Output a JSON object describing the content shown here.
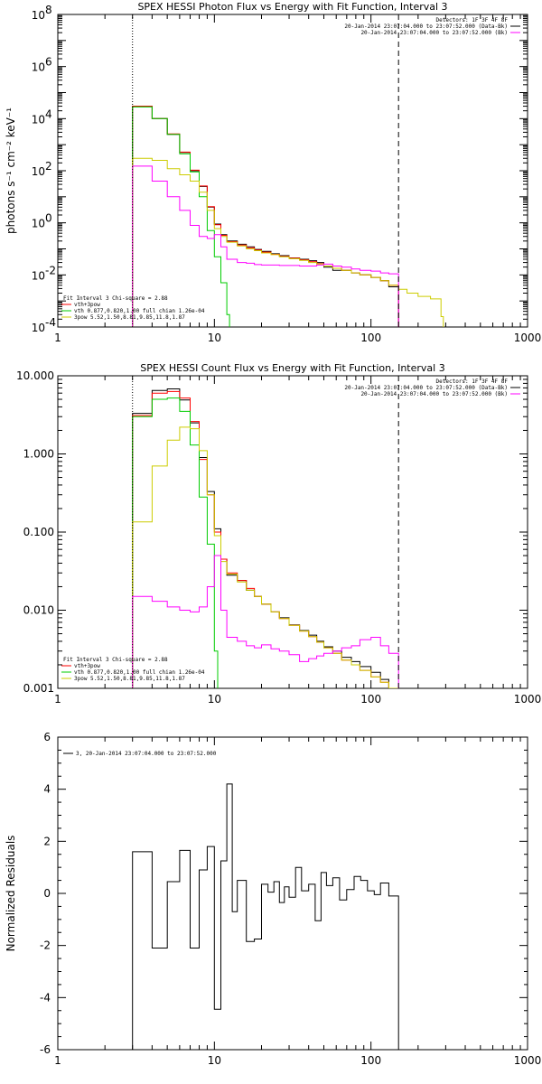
{
  "chart_data": [
    {
      "type": "line",
      "title": "SPEX HESSI Photon Flux vs Energy with Fit Function, Interval 3",
      "ylabel": "photons s⁻¹ cm⁻² keV⁻¹",
      "xlabel": "",
      "xscale": "log",
      "yscale": "log",
      "xlim": [
        1,
        1000
      ],
      "ylim": [
        0.0001,
        100000000
      ],
      "x_ticks": [
        "1",
        "10",
        "100",
        "1000"
      ],
      "y_ticks": [
        {
          "base": "10",
          "exp": "-4"
        },
        {
          "base": "10",
          "exp": "-2"
        },
        {
          "base": "10",
          "exp": "0"
        },
        {
          "base": "10",
          "exp": "2"
        },
        {
          "base": "10",
          "exp": "4"
        },
        {
          "base": "10",
          "exp": "6"
        },
        {
          "base": "10",
          "exp": "8"
        }
      ],
      "legend_top": [
        "Detectors: 1F 3F 4F 8F",
        "20-Jan-2014 23:07:04.000 to 23:07:52.000 (Data-Bk)",
        "20-Jan-2014 23:07:04.000 to 23:07:52.000 (Bk)"
      ],
      "legend_top_colors": [
        "",
        "#000000",
        "#ff00ff"
      ],
      "legend_bottom": [
        "Fit Interval 3   Chi-square = 2.88",
        "vth+3pow",
        "vth 0.877,0.820,1.00  full chian 1.26e-04",
        "3pow 5.52,1.50,8.81,9.85,11.8,1.87"
      ],
      "legend_bottom_colors": [
        "",
        "#ff0000",
        "#00cc00",
        "#cccc00"
      ],
      "vlines": [
        {
          "x": 3.0,
          "style": "dotted"
        },
        {
          "x": 150,
          "style": "dashed"
        }
      ],
      "series": [
        {
          "name": "(Data-Bk)",
          "color": "#000000",
          "edges": [
            3.0,
            4.0,
            5.0,
            6.0,
            7.0,
            8.0,
            9.0,
            10.0,
            11.0,
            12.0,
            14.0,
            16.0,
            18.0,
            20.0,
            23.0,
            26.0,
            30.0,
            35.0,
            40.0,
            45.0,
            50.0,
            57.0,
            65.0,
            75.0,
            85.0,
            100.0,
            115.0,
            130.0,
            150.0
          ],
          "values": [
            30000,
            10000,
            2500,
            500,
            100,
            25,
            4,
            0.9,
            0.35,
            0.2,
            0.15,
            0.12,
            0.095,
            0.08,
            0.065,
            0.055,
            0.045,
            0.04,
            0.035,
            0.03,
            0.02,
            0.015,
            0.015,
            0.012,
            0.01,
            0.008,
            0.006,
            0.0035
          ]
        },
        {
          "name": "vth+3pow",
          "color": "#ff0000",
          "edges": [
            3.0,
            4.0,
            5.0,
            6.0,
            7.0,
            8.0,
            9.0,
            10.0,
            11.0,
            12.0,
            14.0,
            16.0,
            18.0,
            20.0,
            23.0,
            26.0,
            30.0,
            35.0,
            40.0,
            45.0,
            50.0,
            57.0,
            65.0,
            75.0,
            85.0,
            100.0,
            115.0,
            130.0,
            150.0
          ],
          "values": [
            30000,
            10000,
            2600,
            520,
            105,
            26,
            4.2,
            0.85,
            0.33,
            0.19,
            0.14,
            0.11,
            0.09,
            0.075,
            0.062,
            0.052,
            0.044,
            0.038,
            0.032,
            0.027,
            0.022,
            0.018,
            0.015,
            0.012,
            0.01,
            0.008,
            0.006,
            0.004
          ]
        },
        {
          "name": "vth",
          "color": "#00cc00",
          "edges": [
            3.0,
            4.0,
            5.0,
            6.0,
            7.0,
            8.0,
            9.0,
            10.0,
            11.0,
            12.0,
            12.5
          ],
          "values": [
            28000,
            10000,
            2500,
            450,
            90,
            10,
            0.5,
            0.05,
            0.005,
            0.0003
          ]
        },
        {
          "name": "3pow",
          "color": "#cccc00",
          "edges": [
            3.0,
            4.0,
            5.0,
            6.0,
            7.0,
            8.0,
            9.0,
            10.0,
            11.0,
            12.0,
            14.0,
            16.0,
            18.0,
            20.0,
            23.0,
            26.0,
            30.0,
            35.0,
            40.0,
            45.0,
            50.0,
            57.0,
            65.0,
            75.0,
            85.0,
            100.0,
            115.0,
            130.0,
            150.0,
            170.0,
            200.0,
            240.0,
            280.0,
            290.0
          ],
          "values": [
            300,
            250,
            120,
            70,
            40,
            15,
            3,
            0.6,
            0.3,
            0.18,
            0.13,
            0.1,
            0.085,
            0.07,
            0.06,
            0.05,
            0.042,
            0.036,
            0.03,
            0.026,
            0.022,
            0.018,
            0.015,
            0.012,
            0.01,
            0.008,
            0.006,
            0.004,
            0.0028,
            0.002,
            0.0015,
            0.0012,
            0.00025
          ]
        },
        {
          "name": "(Bk)",
          "color": "#ff00ff",
          "edges": [
            3.0,
            4.0,
            5.0,
            6.0,
            7.0,
            8.0,
            9.0,
            10.0,
            11.0,
            12.0,
            14.0,
            16.0,
            18.0,
            20.0,
            23.0,
            26.0,
            30.0,
            35.0,
            40.0,
            45.0,
            50.0,
            57.0,
            65.0,
            75.0,
            85.0,
            100.0,
            115.0,
            130.0,
            150.0
          ],
          "values": [
            150,
            40,
            10,
            3,
            0.8,
            0.3,
            0.25,
            0.35,
            0.12,
            0.04,
            0.03,
            0.028,
            0.025,
            0.024,
            0.024,
            0.023,
            0.023,
            0.022,
            0.022,
            0.024,
            0.026,
            0.022,
            0.02,
            0.017,
            0.015,
            0.014,
            0.012,
            0.011
          ]
        }
      ]
    },
    {
      "type": "line",
      "title": "SPEX HESSI Count Flux vs Energy with Fit Function, Interval 3",
      "ylabel": "",
      "xlabel": "",
      "xscale": "log",
      "yscale": "log",
      "xlim": [
        1,
        1000
      ],
      "ylim": [
        0.001,
        10
      ],
      "x_ticks": [
        "1",
        "10",
        "100",
        "1000"
      ],
      "y_ticks": [
        "0.001",
        "0.010",
        "0.100",
        "1.000",
        "10.000"
      ],
      "legend_top": [
        "Detectors: 1F 3F 4F 8F",
        "20-Jan-2014 23:07:04.000 to 23:07:52.000 (Data-Bk)",
        "20-Jan-2014 23:07:04.000 to 23:07:52.000 (Bk)"
      ],
      "legend_top_colors": [
        "",
        "#000000",
        "#ff00ff"
      ],
      "legend_bottom": [
        "Fit Interval 3   Chi-square = 2.88",
        "vth+3pow",
        "vth 0.877,0.820,1.00  full chian 1.26e-04",
        "3pow 5.52,1.50,8.81,9.85,11.8,1.87"
      ],
      "legend_bottom_colors": [
        "",
        "#ff0000",
        "#00cc00",
        "#cccc00"
      ],
      "vlines": [
        {
          "x": 3.0,
          "style": "dotted"
        },
        {
          "x": 150,
          "style": "dashed"
        }
      ],
      "series": [
        {
          "name": "(Data-Bk)",
          "color": "#000000",
          "edges": [
            3.0,
            4.0,
            5.0,
            6.0,
            7.0,
            8.0,
            9.0,
            10.0,
            11.0,
            12.0,
            14.0,
            16.0,
            18.0,
            20.0,
            23.0,
            26.0,
            30.0,
            35.0,
            40.0,
            45.0,
            50.0,
            57.0,
            65.0,
            75.0,
            85.0,
            100.0,
            115.0,
            130.0,
            150.0
          ],
          "values": [
            3.3,
            6.5,
            6.8,
            4.9,
            2.5,
            0.9,
            0.33,
            0.11,
            0.045,
            0.028,
            0.024,
            0.018,
            0.015,
            0.012,
            0.0095,
            0.008,
            0.0065,
            0.0055,
            0.0048,
            0.004,
            0.0034,
            0.003,
            0.0025,
            0.0022,
            0.0019,
            0.0016,
            0.0013,
            0.001
          ]
        },
        {
          "name": "vth+3pow",
          "color": "#ff0000",
          "edges": [
            3.0,
            4.0,
            5.0,
            6.0,
            7.0,
            8.0,
            9.0,
            10.0,
            11.0,
            12.0,
            14.0,
            16.0,
            18.0,
            20.0,
            23.0,
            26.0,
            30.0,
            35.0,
            40.0,
            45.0,
            50.0,
            57.0,
            65.0,
            75.0,
            85.0,
            100.0,
            115.0,
            130.0,
            150.0
          ],
          "values": [
            3.1,
            6.0,
            6.3,
            5.2,
            2.6,
            0.85,
            0.3,
            0.1,
            0.045,
            0.03,
            0.024,
            0.019,
            0.015,
            0.012,
            0.0095,
            0.0078,
            0.0064,
            0.0054,
            0.0046,
            0.0039,
            0.0033,
            0.0028,
            0.0023,
            0.002,
            0.0017,
            0.0014,
            0.0012,
            0.001
          ]
        },
        {
          "name": "vth",
          "color": "#00cc00",
          "edges": [
            3.0,
            4.0,
            5.0,
            6.0,
            7.0,
            8.0,
            9.0,
            10.0,
            10.5
          ],
          "values": [
            3.0,
            5.0,
            5.2,
            3.5,
            1.3,
            0.28,
            0.07,
            0.003
          ]
        },
        {
          "name": "3pow",
          "color": "#cccc00",
          "edges": [
            3.0,
            4.0,
            5.0,
            6.0,
            7.0,
            8.0,
            9.0,
            10.0,
            11.0,
            12.0,
            14.0,
            16.0,
            18.0,
            20.0,
            23.0,
            26.0,
            30.0,
            35.0,
            40.0,
            45.0,
            50.0,
            57.0,
            65.0,
            75.0,
            85.0,
            100.0,
            115.0,
            130.0,
            150.0
          ],
          "values": [
            0.135,
            0.7,
            1.5,
            2.2,
            2.1,
            1.1,
            0.3,
            0.09,
            0.042,
            0.029,
            0.023,
            0.018,
            0.015,
            0.012,
            0.0095,
            0.0078,
            0.0064,
            0.0054,
            0.0046,
            0.0039,
            0.0033,
            0.0028,
            0.0023,
            0.002,
            0.0017,
            0.0014,
            0.0012,
            0.001
          ]
        },
        {
          "name": "(Bk)",
          "color": "#ff00ff",
          "edges": [
            3.0,
            4.0,
            5.0,
            6.0,
            7.0,
            8.0,
            9.0,
            10.0,
            11.0,
            12.0,
            14.0,
            16.0,
            18.0,
            20.0,
            23.0,
            26.0,
            30.0,
            35.0,
            40.0,
            45.0,
            50.0,
            57.0,
            65.0,
            75.0,
            85.0,
            100.0,
            115.0,
            130.0,
            150.0
          ],
          "values": [
            0.015,
            0.013,
            0.011,
            0.01,
            0.0095,
            0.011,
            0.02,
            0.05,
            0.01,
            0.0045,
            0.004,
            0.0035,
            0.0033,
            0.0036,
            0.0032,
            0.003,
            0.0027,
            0.0022,
            0.0024,
            0.0026,
            0.0028,
            0.003,
            0.0033,
            0.0035,
            0.0042,
            0.0045,
            0.0035,
            0.0028
          ]
        }
      ]
    },
    {
      "type": "line",
      "title": "",
      "ylabel": "Normalized Residuals",
      "xlabel": "",
      "xscale": "log",
      "yscale": "linear",
      "xlim": [
        1,
        1000
      ],
      "ylim": [
        -6,
        6
      ],
      "x_ticks": [
        "1",
        "10",
        "100",
        "1000"
      ],
      "y_ticks": [
        "-6",
        "-4",
        "-2",
        "0",
        "2",
        "4",
        "6"
      ],
      "legend_top": [
        "3, 20-Jan-2014 23:07:04.000 to 23:07:52.000"
      ],
      "legend_top_colors": [
        "#000000"
      ],
      "legend_bottom": [],
      "legend_bottom_colors": [],
      "vlines": [],
      "series": [
        {
          "name": "3, 20-Jan-2014 23:07:04.000 to 23:07:52.000",
          "color": "#000000",
          "edges": [
            3.0,
            4.0,
            5.0,
            6.0,
            7.0,
            8.0,
            9.0,
            10.0,
            11.0,
            12.0,
            13.0,
            14.0,
            16.0,
            18.0,
            20.0,
            22.0,
            24.0,
            26.0,
            28.0,
            30.0,
            33.0,
            36.0,
            40.0,
            44.0,
            48.0,
            52.0,
            57.0,
            63.0,
            70.0,
            78.0,
            86.0,
            95.0,
            105.0,
            115.0,
            130.0,
            150.0
          ],
          "values": [
            1.6,
            -2.1,
            0.45,
            1.65,
            -2.1,
            0.9,
            1.8,
            -4.45,
            1.25,
            4.2,
            -0.7,
            0.5,
            -1.85,
            -1.75,
            0.35,
            0.05,
            0.45,
            -0.35,
            0.25,
            -0.15,
            1.0,
            0.1,
            0.35,
            -1.05,
            0.8,
            0.3,
            0.6,
            -0.25,
            0.15,
            0.65,
            0.5,
            0.1,
            -0.05,
            0.4,
            -0.1
          ]
        }
      ]
    }
  ]
}
